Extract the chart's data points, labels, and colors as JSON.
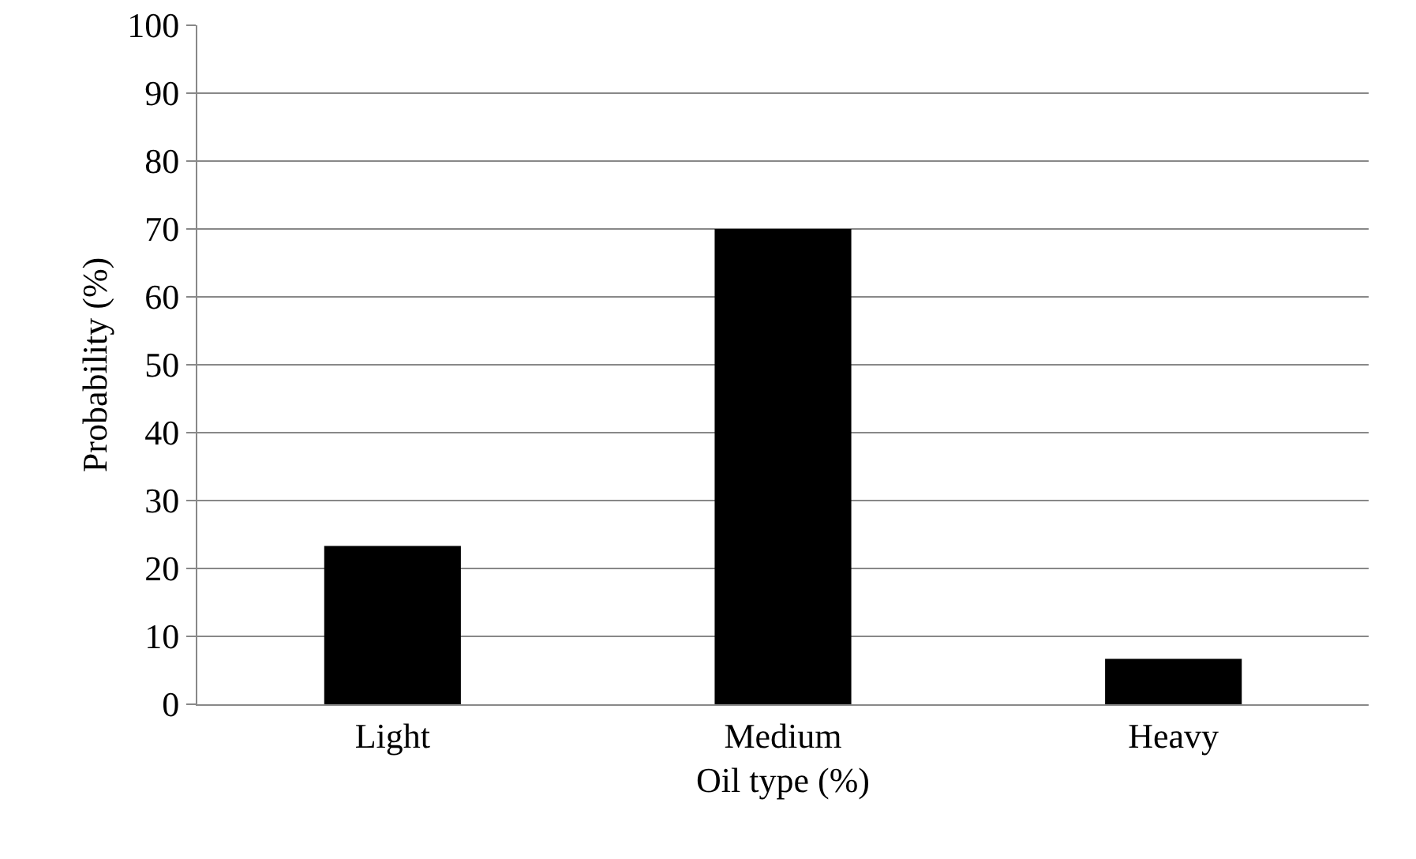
{
  "chart_data": {
    "type": "bar",
    "xlabel": "Oil type (%)",
    "ylabel": "Probability (%)",
    "categories": [
      "Light",
      "Medium",
      "Heavy"
    ],
    "values": [
      23.3,
      70,
      6.7
    ],
    "color": "#000000",
    "ylim": [
      0,
      100
    ],
    "yticks": [
      0,
      10,
      20,
      30,
      40,
      50,
      60,
      70,
      80,
      90,
      100
    ],
    "grid": "y",
    "legend": false
  }
}
